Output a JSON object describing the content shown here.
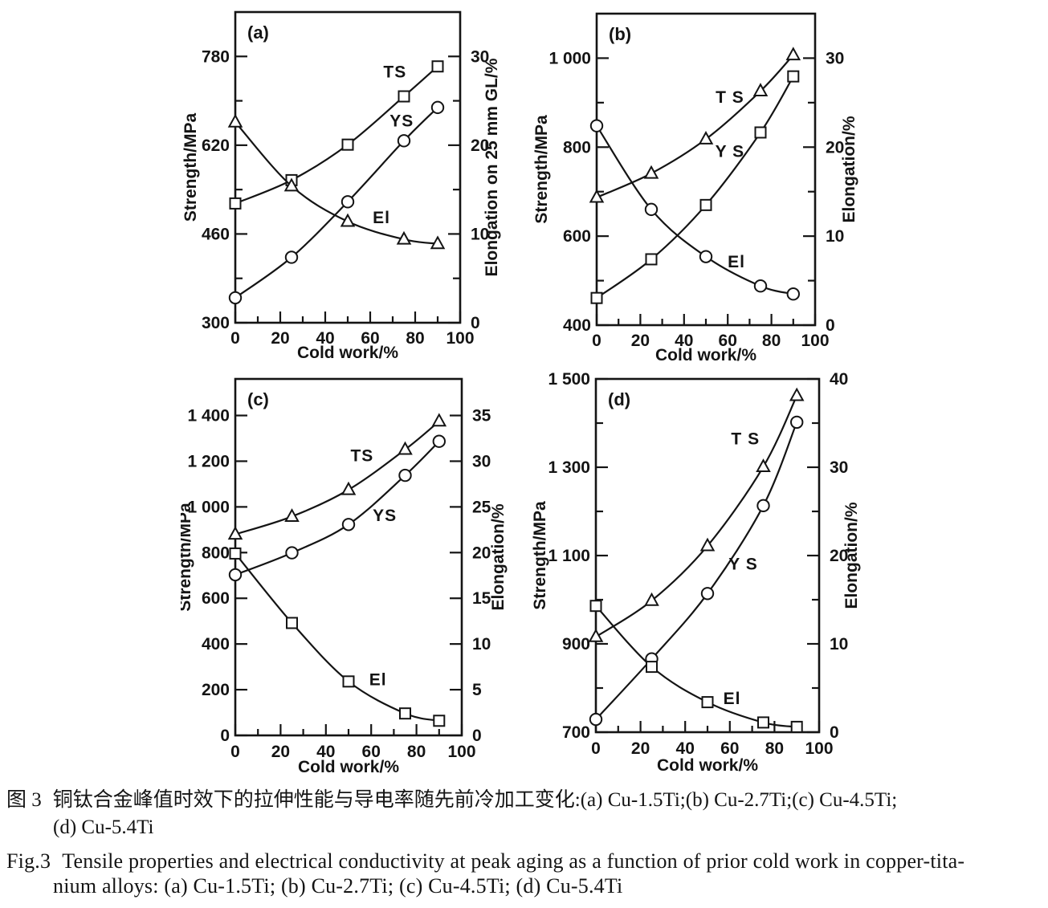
{
  "colors": {
    "ink": "#141414",
    "background": "#ffffff"
  },
  "caption": {
    "zh": {
      "fig_label": "图 3",
      "line1": "铜钛合金峰值时效下的拉伸性能与导电率随先前冷加工变化:(a) Cu-1.5Ti;(b) Cu-2.7Ti;(c) Cu-4.5Ti;",
      "line2": "(d) Cu-5.4Ti"
    },
    "en": {
      "fig_label": "Fig.3",
      "line1": "Tensile properties and electrical conductivity at peak aging as a function of prior cold work in copper-tita-",
      "line2": "nium alloys: (a) Cu-1.5Ti; (b) Cu-2.7Ti; (c) Cu-4.5Ti; (d) Cu-5.4Ti"
    }
  },
  "chart_data": [
    {
      "id": "a",
      "type": "line",
      "panel_label": "(a)",
      "alloy": "Cu-1.5Ti",
      "xlabel": "Cold work/%",
      "x_axis": {
        "lim": [
          0,
          100
        ],
        "ticks": [
          0,
          20,
          40,
          60,
          80,
          100
        ],
        "tick_labels": [
          "0",
          "20",
          "40",
          "60",
          "80",
          "100"
        ],
        "minor_ticks": [
          10,
          30,
          50,
          70,
          90
        ]
      },
      "left_axis": {
        "label": "Strength/MPa",
        "lim": [
          300,
          860
        ],
        "ticks": [
          300,
          460,
          620,
          780
        ],
        "tick_labels": [
          "300",
          "460",
          "620",
          "780"
        ],
        "minor_ticks": [
          380,
          540,
          700
        ]
      },
      "right_axis": {
        "label": "Elongation on 25 mm GL/%",
        "lim": [
          0,
          35
        ],
        "ticks": [
          0,
          10,
          20,
          30
        ],
        "tick_labels": [
          "0",
          "10",
          "20",
          "30"
        ],
        "minor_ticks": [
          5,
          15,
          25
        ]
      },
      "series": [
        {
          "name": "TS",
          "label": "TS",
          "marker": "square",
          "axis": "left",
          "x": [
            0,
            25,
            50,
            75,
            90
          ],
          "y": [
            515,
            557,
            621,
            708,
            762
          ],
          "label_pos": [
            71,
            742
          ]
        },
        {
          "name": "YS",
          "label": "YS",
          "marker": "circle",
          "axis": "left",
          "x": [
            0,
            25,
            50,
            75,
            90
          ],
          "y": [
            345,
            418,
            518,
            628,
            688
          ],
          "label_pos": [
            74,
            654
          ]
        },
        {
          "name": "El",
          "label": "El",
          "marker": "triangle",
          "axis": "right",
          "x": [
            0,
            25,
            50,
            75,
            90
          ],
          "y": [
            22.6,
            15.4,
            11.4,
            9.4,
            8.9
          ],
          "label_pos": [
            65,
            11.2
          ]
        }
      ]
    },
    {
      "id": "b",
      "type": "line",
      "panel_label": "(b)",
      "alloy": "Cu-2.7Ti",
      "xlabel": "Cold work/%",
      "x_axis": {
        "lim": [
          0,
          100
        ],
        "ticks": [
          0,
          20,
          40,
          60,
          80,
          100
        ],
        "tick_labels": [
          "0",
          "20",
          "40",
          "60",
          "80",
          "100"
        ],
        "minor_ticks": [
          10,
          30,
          50,
          70,
          90
        ]
      },
      "left_axis": {
        "label": "Strength/MPa",
        "lim": [
          400,
          1100
        ],
        "ticks": [
          400,
          600,
          800,
          1000
        ],
        "tick_labels": [
          "400",
          "600",
          "800",
          "1 000"
        ],
        "minor_ticks": [
          500,
          700,
          900
        ]
      },
      "right_axis": {
        "label": "Elongation/%",
        "lim": [
          0,
          35
        ],
        "ticks": [
          0,
          10,
          20,
          30
        ],
        "tick_labels": [
          "0",
          "10",
          "20",
          "30"
        ],
        "minor_ticks": [
          5,
          15,
          25
        ]
      },
      "series": [
        {
          "name": "TS",
          "label": "T S",
          "marker": "triangle",
          "axis": "left",
          "x": [
            0,
            25,
            50,
            75,
            90
          ],
          "y": [
            687,
            741,
            818,
            926,
            1007
          ],
          "label_pos": [
            61,
            900
          ]
        },
        {
          "name": "YS",
          "label": "Y S",
          "marker": "square",
          "axis": "left",
          "x": [
            0,
            25,
            50,
            75,
            90
          ],
          "y": [
            461,
            548,
            670,
            833,
            959
          ],
          "label_pos": [
            61,
            778
          ]
        },
        {
          "name": "El",
          "label": "El",
          "marker": "circle",
          "axis": "right",
          "x": [
            0,
            25,
            50,
            75,
            90
          ],
          "y": [
            22.4,
            13.0,
            7.7,
            4.4,
            3.5
          ],
          "label_pos": [
            64,
            6.5
          ]
        }
      ]
    },
    {
      "id": "c",
      "type": "line",
      "panel_label": "(c)",
      "alloy": "Cu-4.5Ti",
      "xlabel": "Cold work/%",
      "x_axis": {
        "lim": [
          0,
          100
        ],
        "ticks": [
          0,
          20,
          40,
          60,
          80,
          100
        ],
        "tick_labels": [
          "0",
          "20",
          "40",
          "60",
          "80",
          "100"
        ],
        "minor_ticks": [
          10,
          30,
          50,
          70,
          90
        ]
      },
      "left_axis": {
        "label": "Strength/MPa",
        "lim": [
          0,
          1560
        ],
        "ticks": [
          0,
          200,
          400,
          600,
          800,
          1000,
          1200,
          1400
        ],
        "tick_labels": [
          "0",
          "200",
          "400",
          "600",
          "800",
          "1 000",
          "1 200",
          "1 400"
        ],
        "minor_ticks": []
      },
      "right_axis": {
        "label": "Elongation/%",
        "lim": [
          0,
          39
        ],
        "ticks": [
          0,
          5,
          10,
          15,
          20,
          25,
          30,
          35
        ],
        "tick_labels": [
          "0",
          "5",
          "10",
          "15",
          "20",
          "25",
          "30",
          "35"
        ],
        "minor_ticks": []
      },
      "series": [
        {
          "name": "TS",
          "label": "TS",
          "marker": "triangle",
          "axis": "left",
          "x": [
            0,
            25,
            50,
            75,
            90
          ],
          "y": [
            880,
            958,
            1075,
            1251,
            1375
          ],
          "label_pos": [
            56,
            1200
          ]
        },
        {
          "name": "YS",
          "label": "YS",
          "marker": "circle",
          "axis": "left",
          "x": [
            0,
            25,
            50,
            75,
            90
          ],
          "y": [
            703,
            799,
            923,
            1138,
            1287
          ],
          "label_pos": [
            66,
            938
          ]
        },
        {
          "name": "El",
          "label": "El",
          "marker": "square",
          "axis": "right",
          "x": [
            0,
            25,
            50,
            75,
            90
          ],
          "y": [
            19.9,
            12.3,
            5.9,
            2.4,
            1.6
          ],
          "label_pos": [
            63,
            5.5
          ]
        }
      ]
    },
    {
      "id": "d",
      "type": "line",
      "panel_label": "(d)",
      "alloy": "Cu-5.4Ti",
      "xlabel": "Cold work/%",
      "x_axis": {
        "lim": [
          0,
          100
        ],
        "ticks": [
          0,
          20,
          40,
          60,
          80,
          100
        ],
        "tick_labels": [
          "0",
          "20",
          "40",
          "60",
          "80",
          "100"
        ],
        "minor_ticks": [
          10,
          30,
          50,
          70,
          90
        ]
      },
      "left_axis": {
        "label": "Strength/MPa",
        "lim": [
          700,
          1500
        ],
        "ticks": [
          700,
          900,
          1100,
          1300,
          1500
        ],
        "tick_labels": [
          "700",
          "900",
          "1 100",
          "1 300",
          "1 500"
        ],
        "minor_ticks": [
          800,
          1000,
          1200,
          1400
        ]
      },
      "right_axis": {
        "label": "Elongation/%",
        "lim": [
          0,
          40
        ],
        "ticks": [
          0,
          10,
          20,
          30,
          40
        ],
        "tick_labels": [
          "0",
          "10",
          "20",
          "30",
          "40"
        ],
        "minor_ticks": [
          5,
          15,
          25,
          35
        ]
      },
      "series": [
        {
          "name": "TS",
          "label": "T S",
          "marker": "triangle",
          "axis": "left",
          "x": [
            0,
            25,
            50,
            75,
            90
          ],
          "y": [
            916,
            998,
            1122,
            1301,
            1462
          ],
          "label_pos": [
            67,
            1352
          ]
        },
        {
          "name": "YS",
          "label": "Y S",
          "marker": "circle",
          "axis": "left",
          "x": [
            0,
            25,
            50,
            75,
            90
          ],
          "y": [
            729,
            866,
            1014,
            1213,
            1402
          ],
          "label_pos": [
            66,
            1068
          ]
        },
        {
          "name": "El",
          "label": "El",
          "marker": "square",
          "axis": "right",
          "x": [
            0,
            25,
            50,
            75,
            90
          ],
          "y": [
            14.3,
            7.4,
            3.4,
            1.1,
            0.6
          ],
          "label_pos": [
            61,
            3.2
          ]
        }
      ]
    }
  ]
}
